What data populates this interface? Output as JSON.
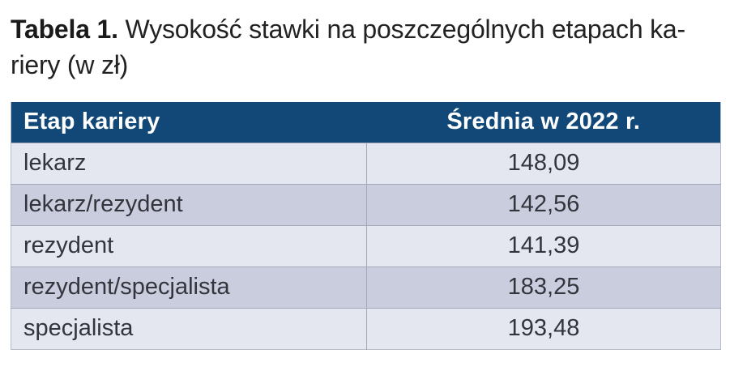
{
  "title": {
    "label": "Tabela 1.",
    "line1": " Wysokość stawki na poszczególnych etapach ka-",
    "line2": "riery (w zł)"
  },
  "table": {
    "columns": [
      "Etap kariery",
      "Średnia w 2022 r."
    ],
    "rows": [
      {
        "etap": "lekarz",
        "average": "148,09"
      },
      {
        "etap": "lekarz/rezydent",
        "average": "142,56"
      },
      {
        "etap": "rezydent",
        "average": "141,39"
      },
      {
        "etap": "rezydent/specjalista",
        "average": "183,25"
      },
      {
        "etap": "specjalista",
        "average": "193,48"
      }
    ]
  },
  "colors": {
    "header_bg": "#114878",
    "header_text": "#ffffff",
    "row_light": "#e4e6f0",
    "row_dark": "#c9cdde",
    "divider": "#a3a9b8",
    "body_text": "#33343c",
    "title_text": "#222222"
  }
}
